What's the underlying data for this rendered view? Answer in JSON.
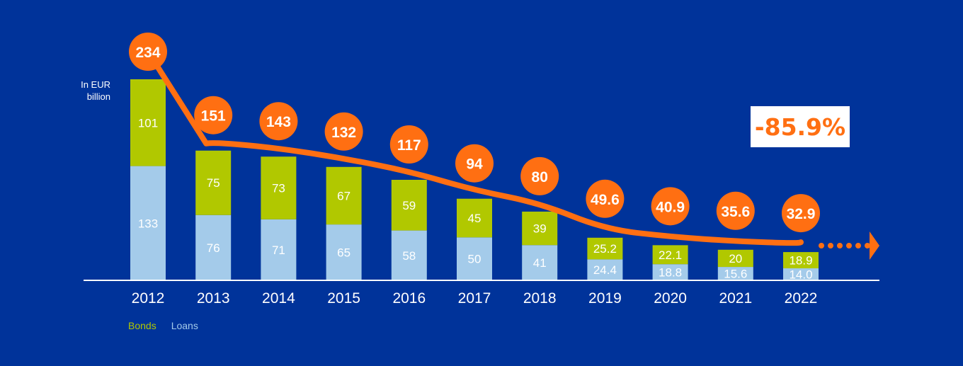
{
  "chart_data": {
    "type": "bar",
    "stacked": true,
    "categories": [
      "2012",
      "2013",
      "2014",
      "2015",
      "2016",
      "2017",
      "2018",
      "2019",
      "2020",
      "2021",
      "2022"
    ],
    "series": [
      {
        "name": "Loans",
        "color": "#a4cbea",
        "values": [
          133,
          76,
          71,
          65,
          58,
          50,
          41,
          24.4,
          18.8,
          15.6,
          14.0
        ],
        "labels": [
          "133",
          "76",
          "71",
          "65",
          "58",
          "50",
          "41",
          "24.4",
          "18.8",
          "15.6",
          "14.0"
        ]
      },
      {
        "name": "Bonds",
        "color": "#b1c800",
        "values": [
          101,
          75,
          73,
          67,
          59,
          45,
          39,
          25.2,
          22.1,
          20,
          18.9
        ],
        "labels": [
          "101",
          "75",
          "73",
          "67",
          "59",
          "45",
          "39",
          "25.2",
          "22.1",
          "20",
          "18.9"
        ]
      }
    ],
    "totals": {
      "values": [
        234,
        151,
        143,
        132,
        117,
        94,
        80,
        49.6,
        40.9,
        35.6,
        32.9
      ],
      "labels": [
        "234",
        "151",
        "143",
        "132",
        "117",
        "94",
        "80",
        "49.6",
        "40.9",
        "35.6",
        "32.9"
      ]
    },
    "ylabel": "In EUR billion",
    "ylim": [
      0,
      234
    ],
    "grid": false,
    "legend_position": "bottom-left",
    "annotation": "-85.9%",
    "colors": {
      "background": "#00339a",
      "line": "#ff6f12",
      "bonds": "#b1c800",
      "loans": "#a4cbea",
      "axis": "#ffffff"
    }
  },
  "unit_label": {
    "line1": "In EUR",
    "line2": "billion"
  },
  "callout": "-85.9%",
  "legend": {
    "bonds": "Bonds",
    "loans": "Loans"
  }
}
